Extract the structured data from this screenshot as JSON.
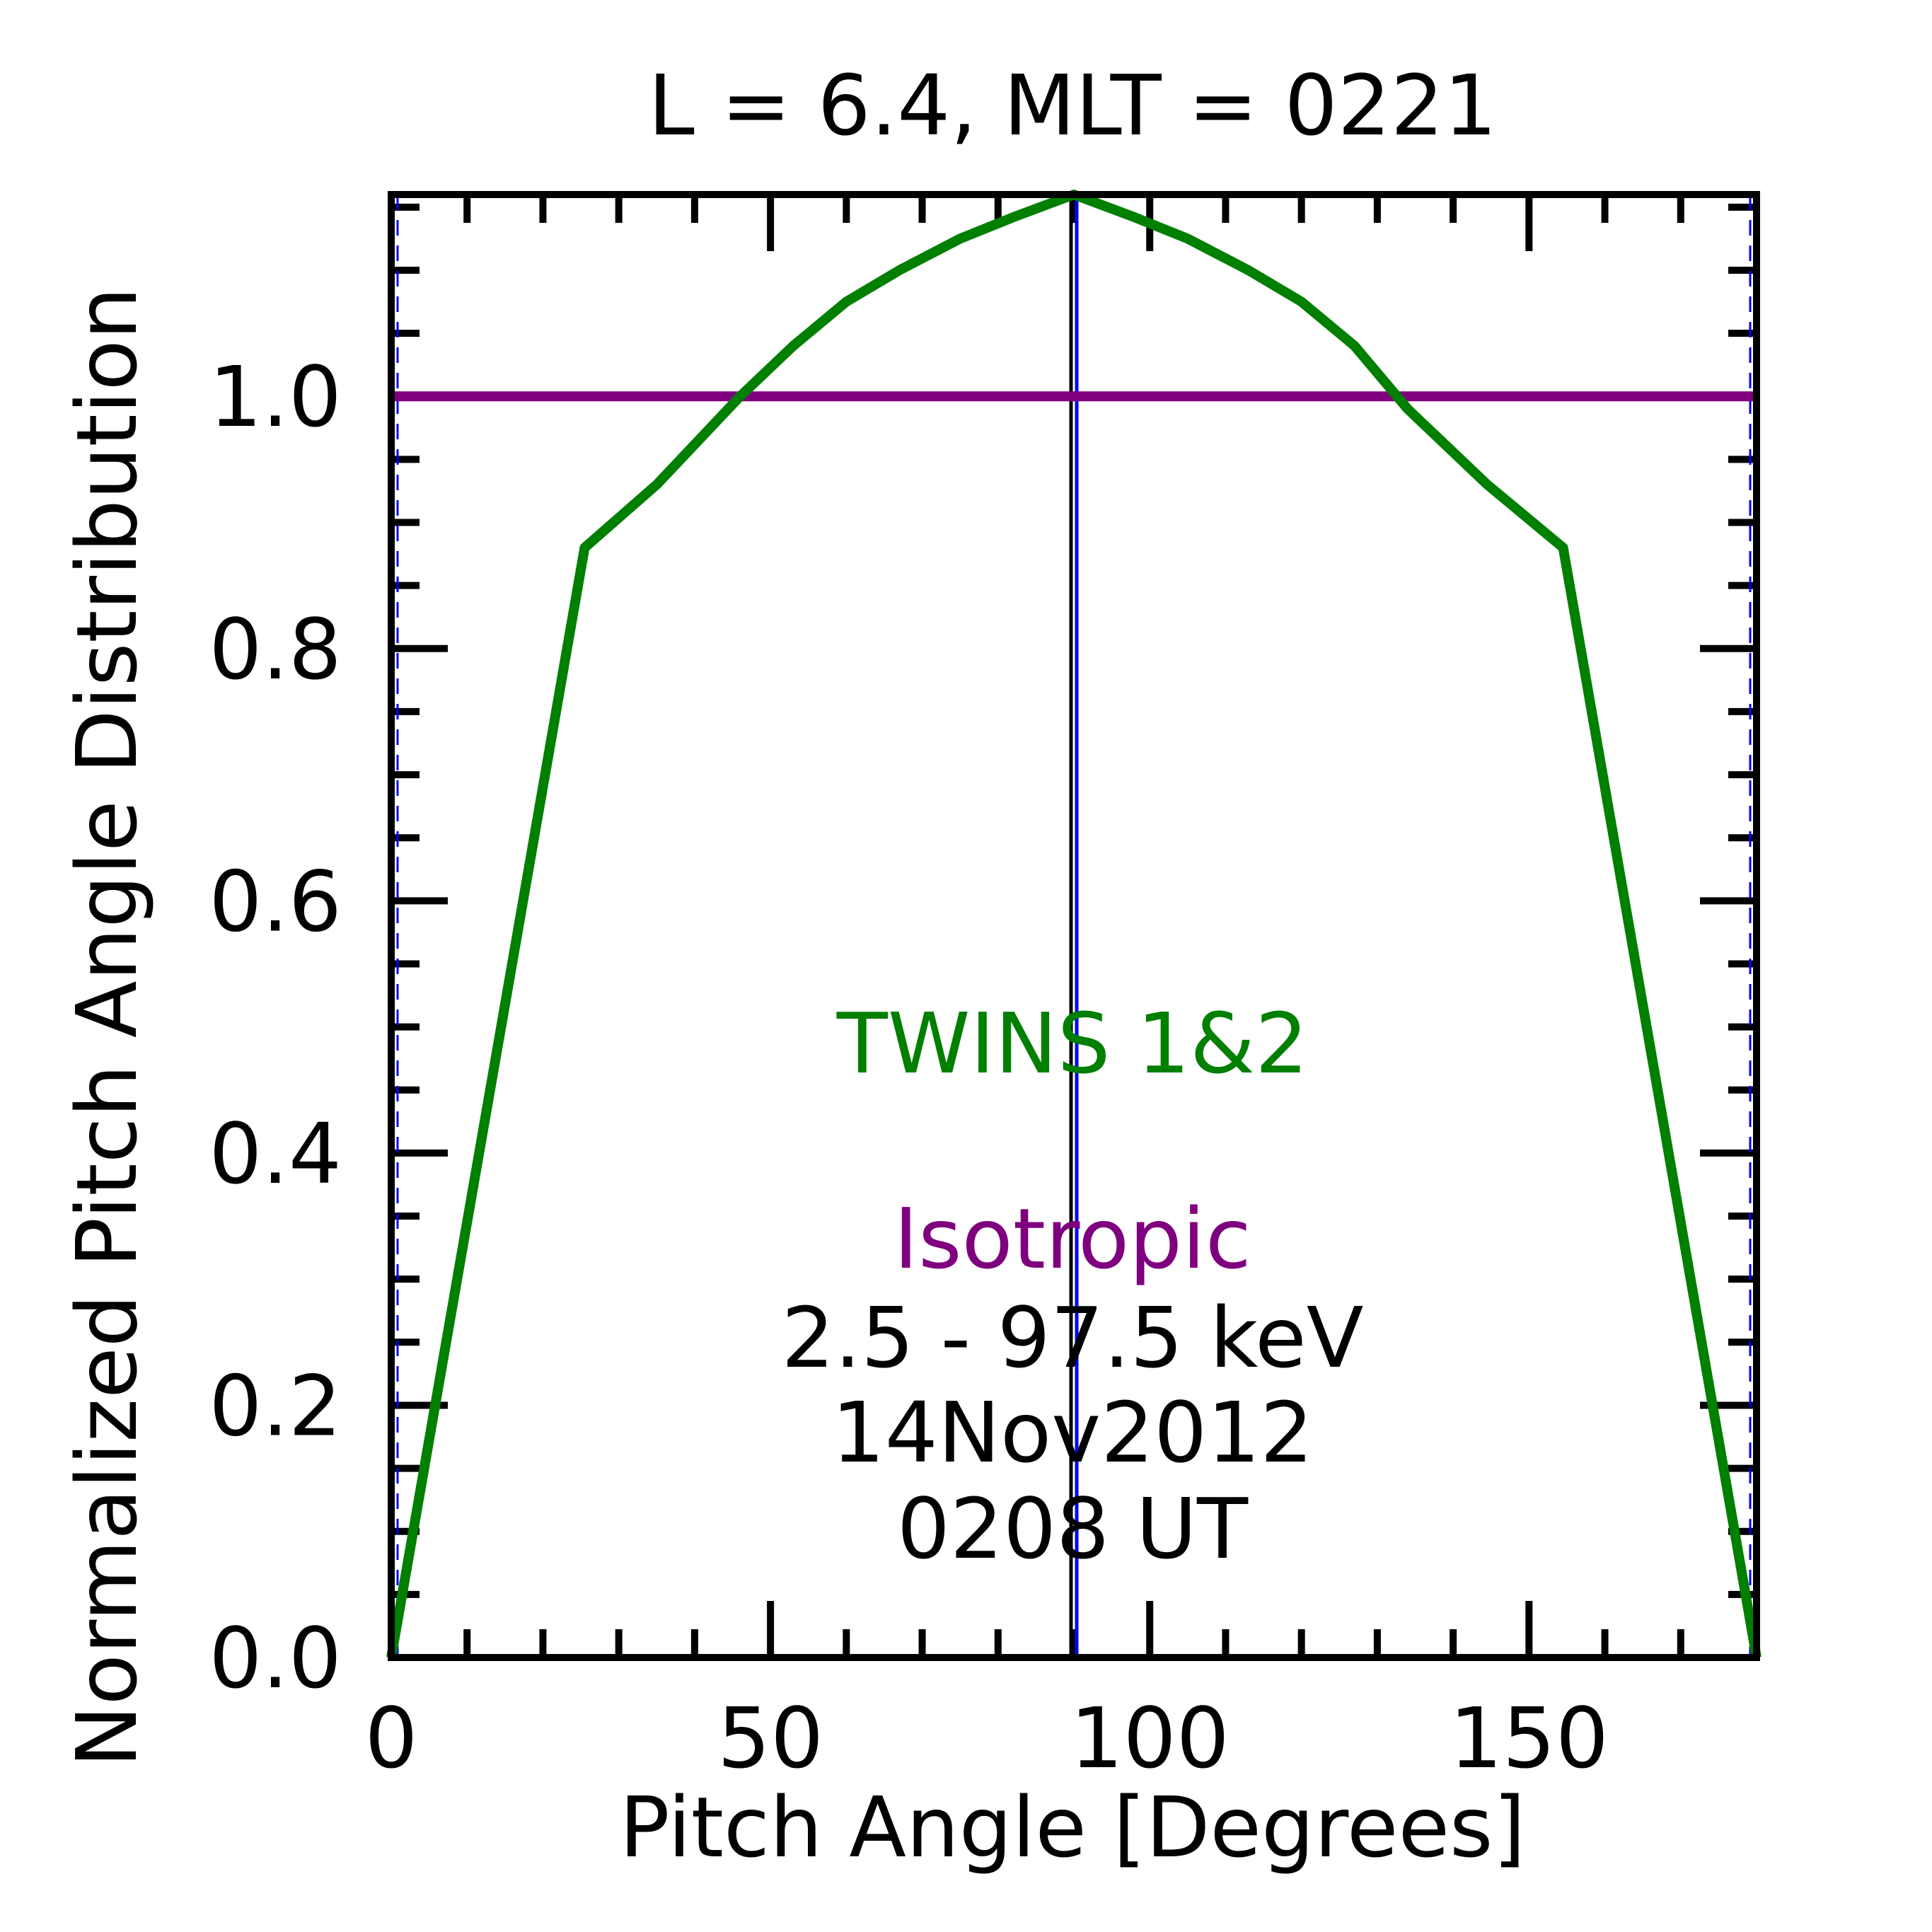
{
  "chart_data": {
    "type": "line",
    "title": "L =  6.4, MLT = 0221",
    "xlabel": "Pitch Angle [Degrees]",
    "ylabel": "Normalized Pitch Angle Distribution",
    "xlim": [
      0,
      180
    ],
    "ylim": [
      0,
      1.16
    ],
    "x_ticks": [
      0,
      50,
      100,
      150
    ],
    "y_ticks": [
      0.0,
      0.2,
      0.4,
      0.6,
      0.8,
      1.0
    ],
    "x_tick_labels": [
      "0",
      "50",
      "100",
      "150"
    ],
    "y_tick_labels": [
      "0.0",
      "0.2",
      "0.4",
      "0.6",
      "0.8",
      "1.0"
    ],
    "x_minor_step": 10,
    "y_minor_step": 0.05,
    "grid": false,
    "series": [
      {
        "name": "TWINS 1&2",
        "color": "#007f00",
        "x": [
          0,
          25.5,
          35,
          46,
          53,
          60,
          67,
          75,
          82,
          90,
          98,
          105,
          113,
          120,
          127,
          134,
          144.5,
          154.5,
          180
        ],
        "y": [
          0.0,
          0.88,
          0.93,
          1.0,
          1.04,
          1.075,
          1.1,
          1.125,
          1.142,
          1.16,
          1.142,
          1.125,
          1.1,
          1.075,
          1.04,
          0.99,
          0.93,
          0.88,
          0.0
        ]
      },
      {
        "name": "Isotropic",
        "color": "#7f007f",
        "x": [
          0,
          180
        ],
        "y": [
          1.0,
          1.0
        ]
      }
    ],
    "vertical_lines": [
      {
        "x": 90,
        "color": "#0000ff"
      },
      {
        "x": 90,
        "color": "#000000"
      }
    ],
    "annotations": {
      "energy": "2.5 - 97.5 keV",
      "date": "14Nov2012",
      "time": "0208 UT"
    }
  }
}
